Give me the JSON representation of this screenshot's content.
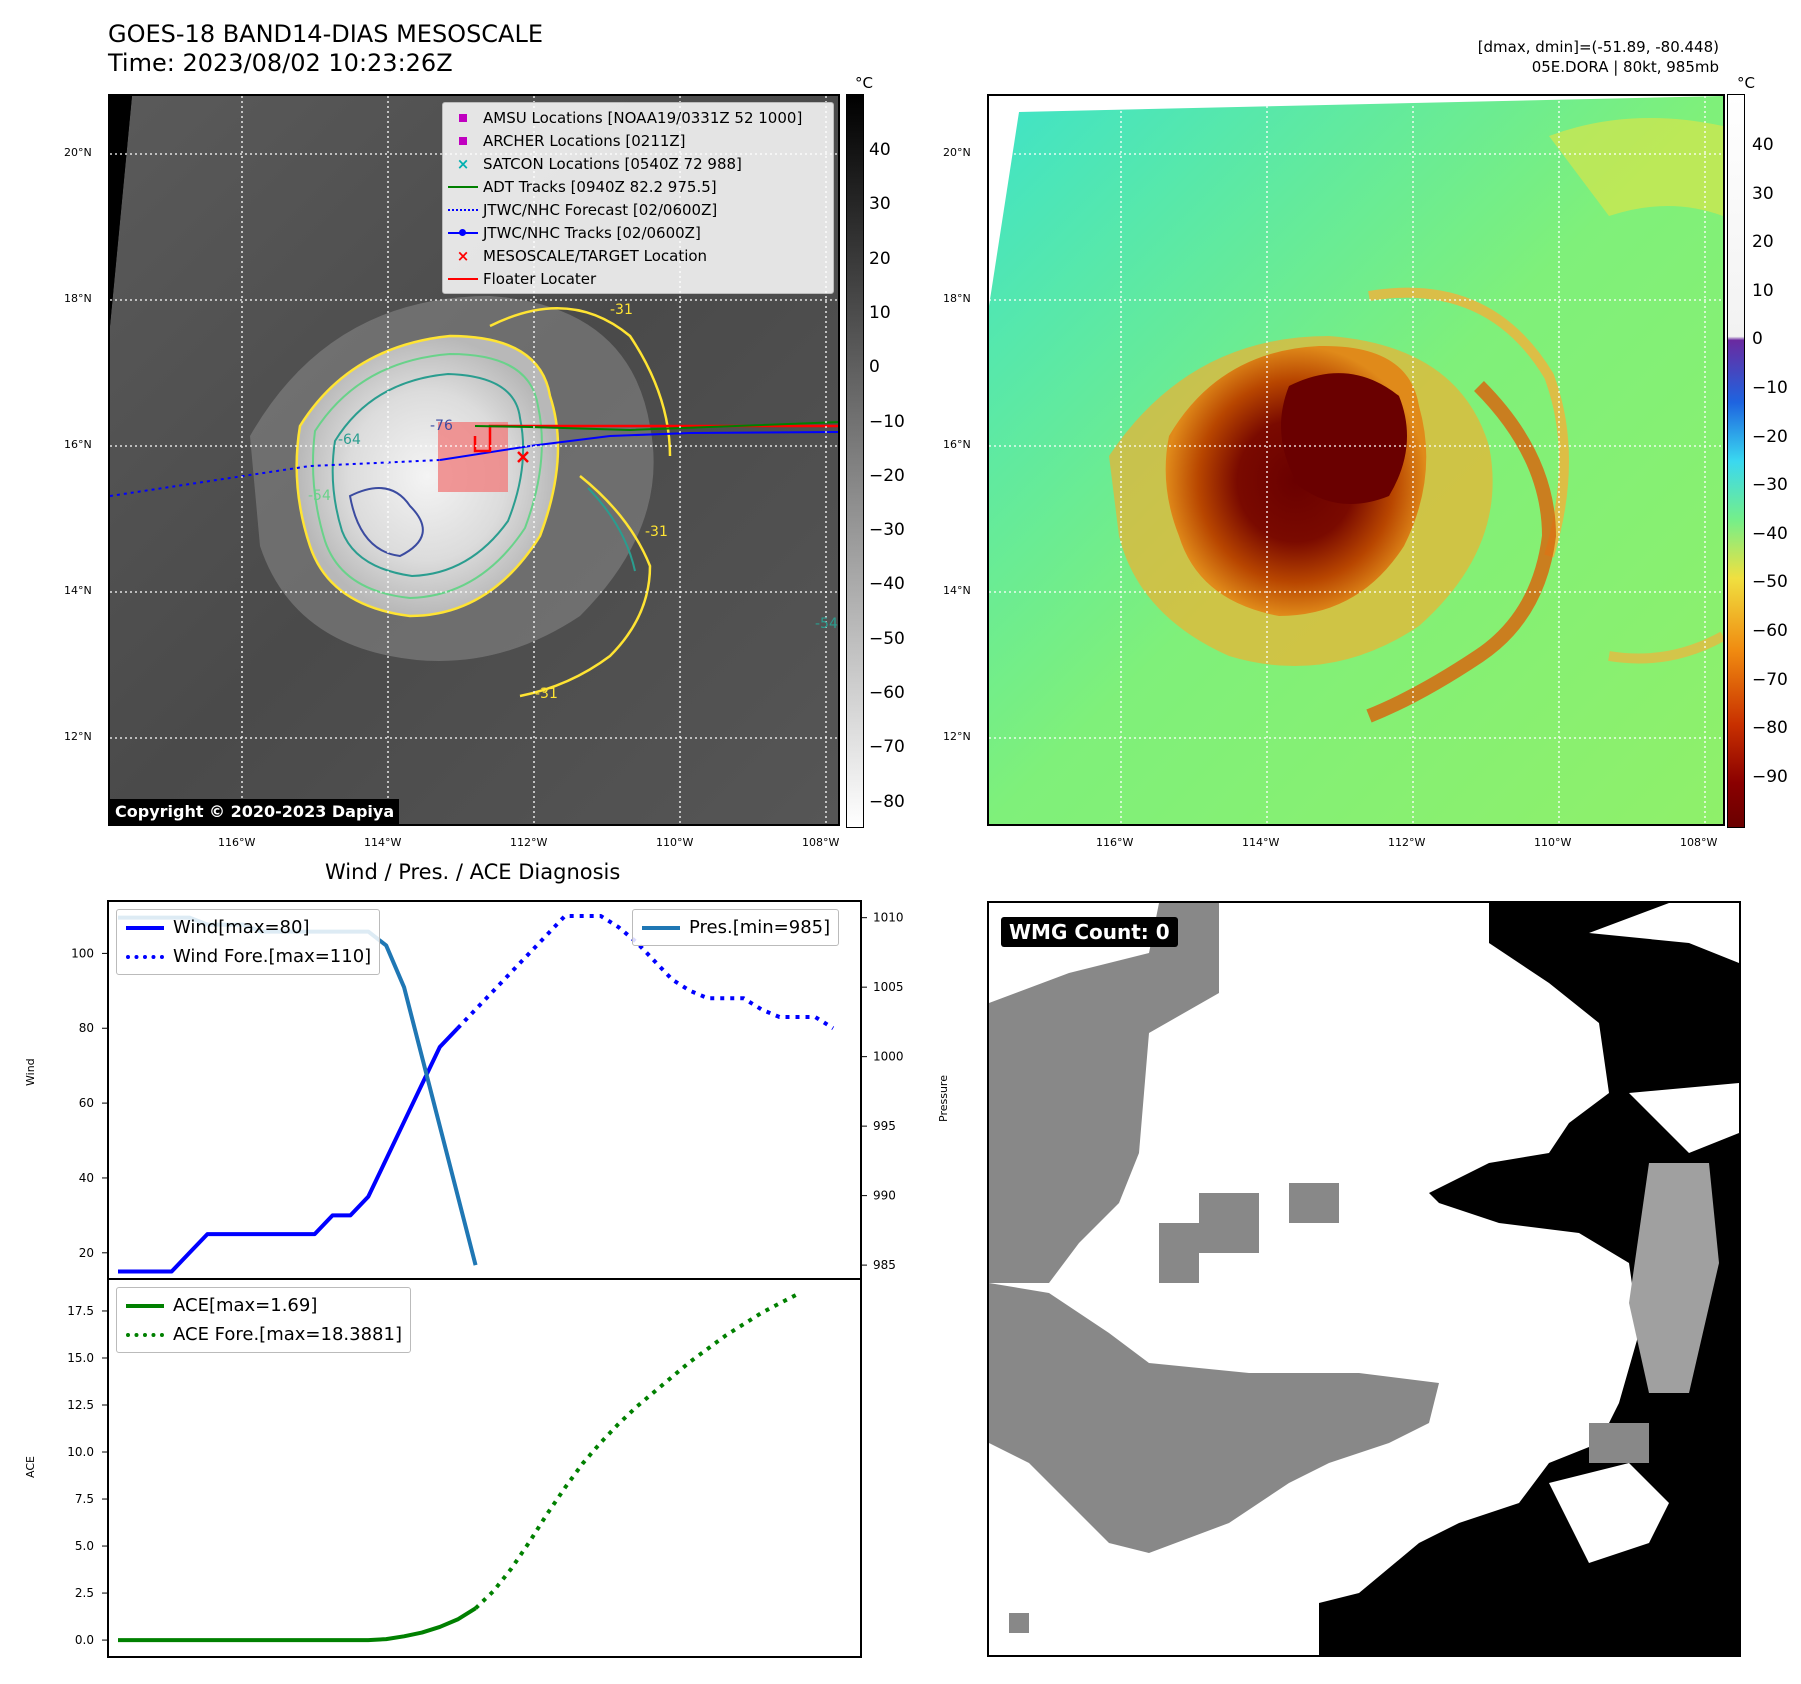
{
  "header": {
    "title": "GOES-18 BAND14-DIAS MESOSCALE",
    "time": "Time: 2023/08/02 10:23:26Z",
    "dmax_dmin": "[dmax, dmin]=(-51.89, -80.448)",
    "storm": "05E.DORA | 80kt, 985mb"
  },
  "map_gray": {
    "copyright": "Copyright © 2020-2023 Dapiya",
    "lat_labels": [
      "20°N",
      "18°N",
      "16°N",
      "14°N",
      "12°N"
    ],
    "lon_labels": [
      "116°W",
      "114°W",
      "112°W",
      "110°W",
      "108°W"
    ],
    "contour_labels": [
      "-76",
      "-64",
      "-54",
      "-31",
      "-31",
      "-31",
      "-54"
    ],
    "legend": [
      {
        "label": "AMSU Locations [NOAA19/0331Z 52 1000]",
        "color": "#c000c0",
        "icon": "square-marker"
      },
      {
        "label": "ARCHER Locations [0211Z]",
        "color": "#c000c0",
        "icon": "square-marker"
      },
      {
        "label": "SATCON Locations [0540Z 72 988]",
        "color": "#00b0b0",
        "icon": "x-marker"
      },
      {
        "label": "ADT Tracks [0940Z 82.2 975.5]",
        "color": "#008000",
        "icon": "solid-line"
      },
      {
        "label": "JTWC/NHC Forecast [02/0600Z]",
        "color": "#0000ff",
        "icon": "dotted-line"
      },
      {
        "label": "JTWC/NHC Tracks [02/0600Z]",
        "color": "#0000ff",
        "icon": "line-with-dot"
      },
      {
        "label": "MESOSCALE/TARGET Location",
        "color": "#ff0000",
        "icon": "x-marker"
      },
      {
        "label": "Floater Locater",
        "color": "#ff0000",
        "icon": "solid-line"
      }
    ],
    "colorbar": {
      "unit": "°C",
      "ticks": [
        "40",
        "30",
        "20",
        "10",
        "0",
        "−10",
        "−20",
        "−30",
        "−40",
        "−50",
        "−60",
        "−70",
        "−80"
      ]
    }
  },
  "map_color": {
    "lat_labels": [
      "20°N",
      "18°N",
      "16°N",
      "14°N",
      "12°N"
    ],
    "lon_labels": [
      "116°W",
      "114°W",
      "112°W",
      "110°W",
      "108°W"
    ],
    "colorbar": {
      "unit": "°C",
      "ticks": [
        "40",
        "30",
        "20",
        "10",
        "0",
        "−10",
        "−20",
        "−30",
        "−40",
        "−50",
        "−60",
        "−70",
        "−80",
        "−90"
      ]
    }
  },
  "wmg": {
    "label": "WMG Count: 0"
  },
  "colors": {
    "wind": "#0000ff",
    "pressure": "#1f77b4",
    "ace": "#008000",
    "contour_yellow": "#ffe433",
    "contour_teal": "#2a9d8f"
  },
  "chart_data": [
    {
      "type": "line",
      "title": "Wind / Pres. / ACE Diagnosis",
      "ylabel": "Wind",
      "y2label": "Pressure",
      "ylim": [
        13,
        114
      ],
      "y2lim": [
        984,
        1011.2
      ],
      "yticks": [
        "100",
        "80",
        "60",
        "40",
        "20"
      ],
      "y2ticks": [
        "1010",
        "1005",
        "1000",
        "995",
        "990",
        "985"
      ],
      "series": [
        {
          "name": "Wind[max=80]",
          "style": "solid",
          "axis": "left",
          "values": [
            15,
            15,
            15,
            15,
            20,
            25,
            25,
            25,
            25,
            25,
            25,
            25,
            30,
            30,
            35,
            45,
            55,
            65,
            75,
            80
          ]
        },
        {
          "name": "Wind Fore.[max=110]",
          "style": "dotted",
          "axis": "left",
          "x_start": 19,
          "values": [
            80,
            85,
            90,
            95,
            100,
            105,
            110,
            110,
            110,
            107,
            103,
            98,
            93,
            90,
            88,
            88,
            88,
            85,
            83,
            83,
            83,
            80
          ]
        },
        {
          "name": "Pres.[min=985]",
          "style": "solid",
          "axis": "right",
          "values": [
            1010,
            1010,
            1010,
            1010,
            1010,
            1009.5,
            1009.5,
            1009.5,
            1009,
            1009,
            1009,
            1009,
            1009,
            1009,
            1009,
            1008,
            1005,
            1000,
            995,
            990,
            985
          ]
        }
      ]
    },
    {
      "type": "line",
      "ylabel": "ACE",
      "ylim": [
        -0.9,
        19.2
      ],
      "yticks": [
        "17.5",
        "15.0",
        "12.5",
        "10.0",
        "7.5",
        "5.0",
        "2.5",
        "0.0"
      ],
      "series": [
        {
          "name": "ACE[max=1.69]",
          "style": "solid",
          "values": [
            0,
            0,
            0,
            0,
            0,
            0,
            0,
            0,
            0,
            0,
            0,
            0,
            0,
            0,
            0,
            0.05,
            0.2,
            0.4,
            0.7,
            1.1,
            1.69
          ]
        },
        {
          "name": "ACE Fore.[max=18.3881]",
          "style": "dotted",
          "x_start": 20,
          "values": [
            1.69,
            2.6,
            3.8,
            5.2,
            6.7,
            8.1,
            9.4,
            10.5,
            11.5,
            12.4,
            13.2,
            14.0,
            14.8,
            15.5,
            16.2,
            16.8,
            17.4,
            17.9,
            18.3881
          ]
        }
      ]
    }
  ]
}
